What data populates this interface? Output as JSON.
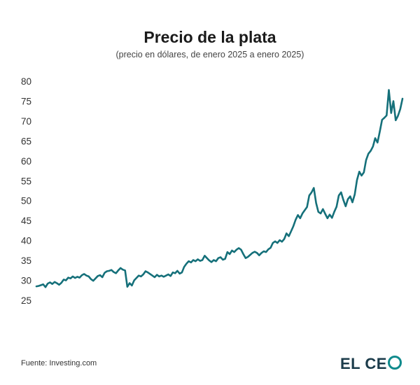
{
  "title": "Precio de la plata",
  "subtitle": "(precio en dólares, de enero 2025 a enero 2025)",
  "source": "Fuente: Investing.com",
  "logo": {
    "text": "EL CE",
    "o_mark": "ring-o-icon"
  },
  "colors": {
    "line": "#15707a",
    "logo_text": "#1b3b4a",
    "logo_ring": "#0f8a8c"
  },
  "chart_data": {
    "type": "line",
    "title": "Precio de la plata",
    "subtitle": "(precio en dólares, de enero 2025 a enero 2025)",
    "xlabel": "",
    "ylabel": "",
    "ylim": [
      25,
      80
    ],
    "yticks": [
      80,
      75,
      70,
      65,
      60,
      55,
      50,
      45,
      40,
      35,
      30,
      25
    ],
    "grid": false,
    "legend": "none",
    "series": [
      {
        "values": [
          28.5,
          28.6,
          28.8,
          29.0,
          28.3,
          29.2,
          29.5,
          29.1,
          29.6,
          29.3,
          28.9,
          29.4,
          30.2,
          30.0,
          30.7,
          30.5,
          31.0,
          30.6,
          30.9,
          30.7,
          31.3,
          31.6,
          31.2,
          31.0,
          30.3,
          29.9,
          30.5,
          31.1,
          31.3,
          30.8,
          31.9,
          32.3,
          32.4,
          32.6,
          32.1,
          31.8,
          32.5,
          33.1,
          32.7,
          32.5,
          28.4,
          29.3,
          28.7,
          30.0,
          30.6,
          31.2,
          31.0,
          31.5,
          32.3,
          32.0,
          31.6,
          31.2,
          30.8,
          31.4,
          31.0,
          31.2,
          30.9,
          31.2,
          31.5,
          31.1,
          32.0,
          31.8,
          32.4,
          31.7,
          32.0,
          33.4,
          34.2,
          34.8,
          34.5,
          35.1,
          34.8,
          35.3,
          34.9,
          35.1,
          36.2,
          35.6,
          35.0,
          34.6,
          35.1,
          34.8,
          35.6,
          35.8,
          35.2,
          35.4,
          37.1,
          36.6,
          37.5,
          37.1,
          37.7,
          38.1,
          37.7,
          36.6,
          35.6,
          35.9,
          36.4,
          36.9,
          37.2,
          36.9,
          36.3,
          36.9,
          37.3,
          37.1,
          37.8,
          38.2,
          39.4,
          39.8,
          39.4,
          40.1,
          39.7,
          40.4,
          41.8,
          41.1,
          42.3,
          43.6,
          45.2,
          46.4,
          45.6,
          46.8,
          47.6,
          48.4,
          51.3,
          52.1,
          53.2,
          49.4,
          47.2,
          46.8,
          47.9,
          46.7,
          45.6,
          46.5,
          45.7,
          47.2,
          48.5,
          51.3,
          52.1,
          50.2,
          48.6,
          50.4,
          51.1,
          49.6,
          51.6,
          55.2,
          57.3,
          56.3,
          57.1,
          60.2,
          61.8,
          62.5,
          63.6,
          65.7,
          64.6,
          67.3,
          70.3,
          70.8,
          71.4,
          77.8,
          72.0,
          75.0,
          70.2,
          71.3,
          73.0,
          75.6
        ]
      }
    ]
  }
}
